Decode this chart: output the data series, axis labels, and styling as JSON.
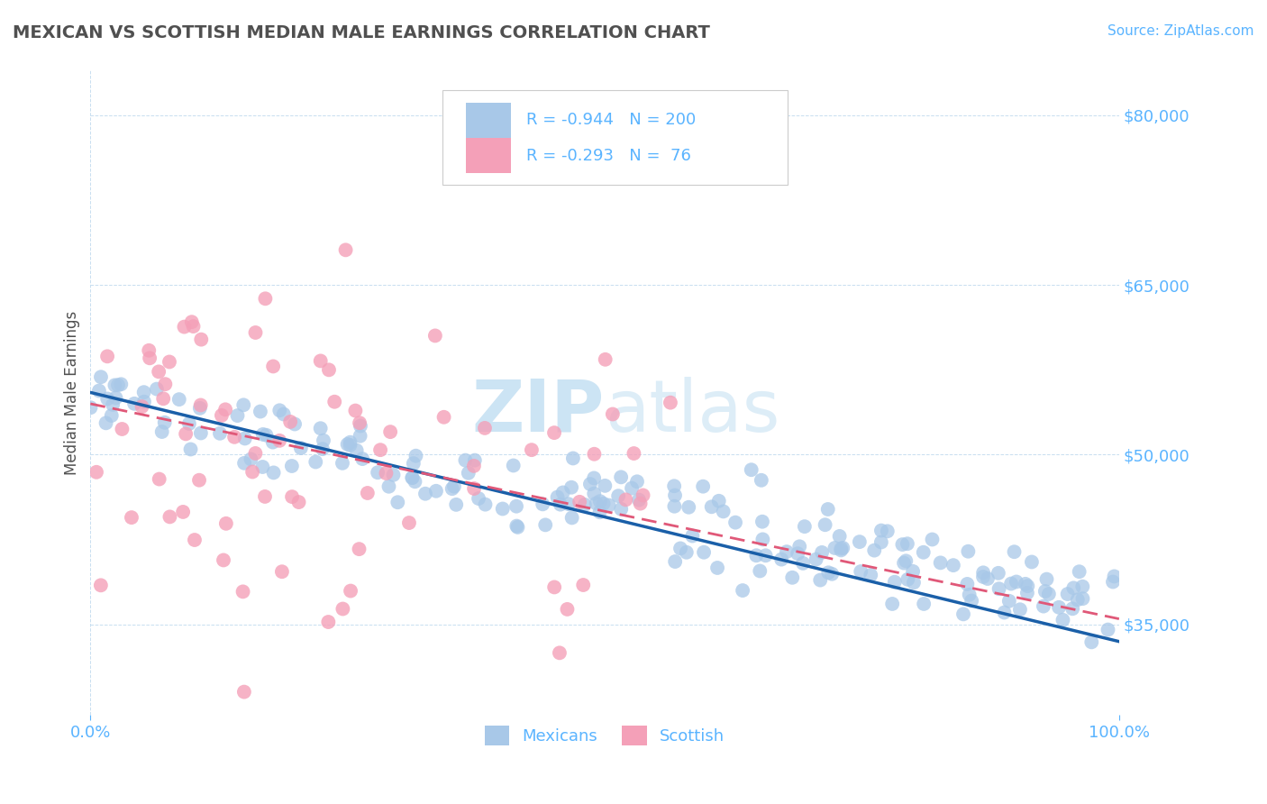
{
  "title": "MEXICAN VS SCOTTISH MEDIAN MALE EARNINGS CORRELATION CHART",
  "source": "Source: ZipAtlas.com",
  "ylabel": "Median Male Earnings",
  "xmin": 0.0,
  "xmax": 1.0,
  "ymin": 27000,
  "ymax": 84000,
  "yticks": [
    35000,
    50000,
    65000,
    80000
  ],
  "ytick_labels": [
    "$35,000",
    "$50,000",
    "$65,000",
    "$80,000"
  ],
  "xtick_labels": [
    "0.0%",
    "100.0%"
  ],
  "blue_R": "-0.944",
  "blue_N": "200",
  "pink_R": "-0.293",
  "pink_N": "76",
  "blue_color": "#a8c8e8",
  "pink_color": "#f4a0b8",
  "blue_line_color": "#1a5fa8",
  "pink_line_color": "#e05878",
  "title_color": "#505050",
  "axis_color": "#5ab4ff",
  "watermark_color": "#cce4f4",
  "legend_label_blue": "Mexicans",
  "legend_label_pink": "Scottish",
  "background_color": "#ffffff",
  "grid_color": "#c8dff0"
}
